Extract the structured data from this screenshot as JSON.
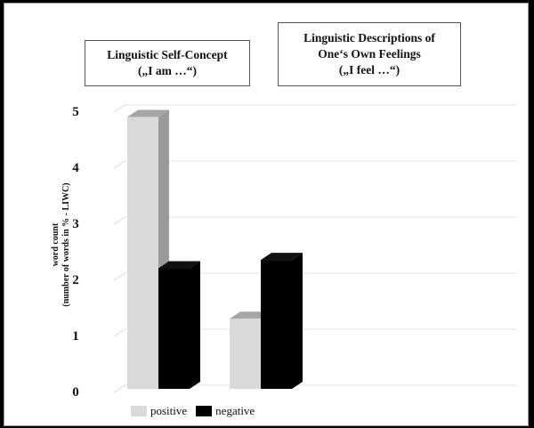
{
  "chart_data": {
    "type": "bar",
    "categories": [
      "Linguistic Self-Concept",
      "Linguistic Descriptions of One‘s Own Feelings"
    ],
    "category_boxes": [
      [
        "Linguistic  Self-Concept",
        "(„I am …“)"
      ],
      [
        "Linguistic  Descriptions  of",
        "One‘s Own Feelings",
        "(„I feel …“)"
      ]
    ],
    "series": [
      {
        "name": "positive",
        "values": [
          4.85,
          1.25
        ],
        "color": "#d9d9d9",
        "side_color": "#9a9a9a",
        "top_color": "#a6a6a6"
      },
      {
        "name": "negative",
        "values": [
          2.15,
          2.3
        ],
        "color": "#000000",
        "side_color": "#000000",
        "top_color": "#111111"
      }
    ],
    "ylabel_lines": [
      "word count",
      "(number of words in % - LIWC)"
    ],
    "yticks": [
      "0",
      "1",
      "2",
      "3",
      "4",
      "5"
    ],
    "ylim": [
      0,
      5
    ],
    "grid": true,
    "legend_position": "bottom"
  }
}
